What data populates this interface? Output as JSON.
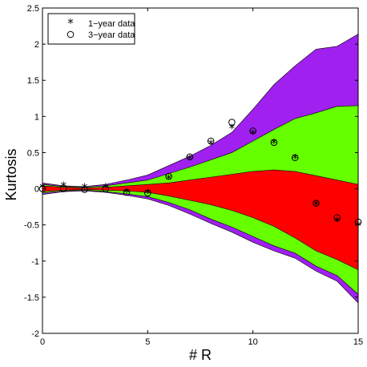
{
  "chart_data": {
    "type": "area",
    "xlabel": "# R",
    "ylabel": "Kurtosis",
    "xlim": [
      0,
      15
    ],
    "ylim": [
      -2,
      2.5
    ],
    "xticks": [
      "0",
      "5",
      "10",
      "15"
    ],
    "yticks": [
      "2.5",
      "2",
      "1.5",
      "1",
      "0.5",
      "0",
      "-0.5",
      "-1",
      "-1.5",
      "-2"
    ],
    "grid": false,
    "legend_position": "top-left",
    "bands": {
      "x": [
        0,
        1,
        2,
        3,
        4,
        5,
        6,
        7,
        8,
        9,
        10,
        11,
        12,
        13,
        14,
        15
      ],
      "outer_upper": [
        0.08,
        0.04,
        0.03,
        0.06,
        0.12,
        0.19,
        0.32,
        0.45,
        0.6,
        0.78,
        1.1,
        1.44,
        1.7,
        1.93,
        1.97,
        2.14
      ],
      "middle_upper": [
        0.06,
        0.03,
        0.02,
        0.04,
        0.08,
        0.12,
        0.21,
        0.3,
        0.4,
        0.5,
        0.66,
        0.82,
        0.97,
        1.05,
        1.14,
        1.15
      ],
      "inner_upper": [
        0.04,
        0.02,
        0.01,
        0.02,
        0.04,
        0.06,
        0.08,
        0.12,
        0.16,
        0.2,
        0.24,
        0.26,
        0.24,
        0.18,
        0.12,
        0.06
      ],
      "inner_lower": [
        -0.04,
        -0.02,
        -0.01,
        -0.02,
        -0.03,
        -0.05,
        -0.1,
        -0.16,
        -0.22,
        -0.3,
        -0.4,
        -0.52,
        -0.68,
        -0.86,
        -0.98,
        -1.12
      ],
      "middle_lower": [
        -0.06,
        -0.03,
        -0.02,
        -0.04,
        -0.07,
        -0.11,
        -0.19,
        -0.29,
        -0.42,
        -0.53,
        -0.66,
        -0.79,
        -0.89,
        -1.07,
        -1.2,
        -1.46
      ],
      "outer_lower": [
        -0.08,
        -0.04,
        -0.03,
        -0.05,
        -0.09,
        -0.14,
        -0.23,
        -0.35,
        -0.48,
        -0.6,
        -0.74,
        -0.86,
        -0.96,
        -1.14,
        -1.28,
        -1.58
      ],
      "colors": {
        "outer": "#a020f0",
        "middle": "#66ff00",
        "inner": "#ff0000"
      }
    },
    "series": [
      {
        "name": "1−year data",
        "marker": "asterisk",
        "x": [
          0,
          1,
          2,
          3,
          4,
          5,
          6,
          7,
          8,
          9,
          10,
          11,
          12,
          13,
          14,
          15
        ],
        "values": [
          0.02,
          0.04,
          0.02,
          0.02,
          -0.05,
          -0.06,
          0.14,
          0.41,
          0.62,
          0.84,
          0.76,
          0.63,
          0.42,
          -0.22,
          -0.45,
          -0.51
        ]
      },
      {
        "name": "3−year data",
        "marker": "circle",
        "x": [
          0,
          1,
          2,
          3,
          4,
          5,
          6,
          7,
          8,
          9,
          10,
          11,
          12,
          13,
          14,
          15
        ],
        "values": [
          0.0,
          0.0,
          -0.01,
          0.0,
          -0.05,
          -0.06,
          0.17,
          0.44,
          0.66,
          0.92,
          0.8,
          0.64,
          0.43,
          -0.2,
          -0.4,
          -0.46
        ]
      }
    ]
  }
}
